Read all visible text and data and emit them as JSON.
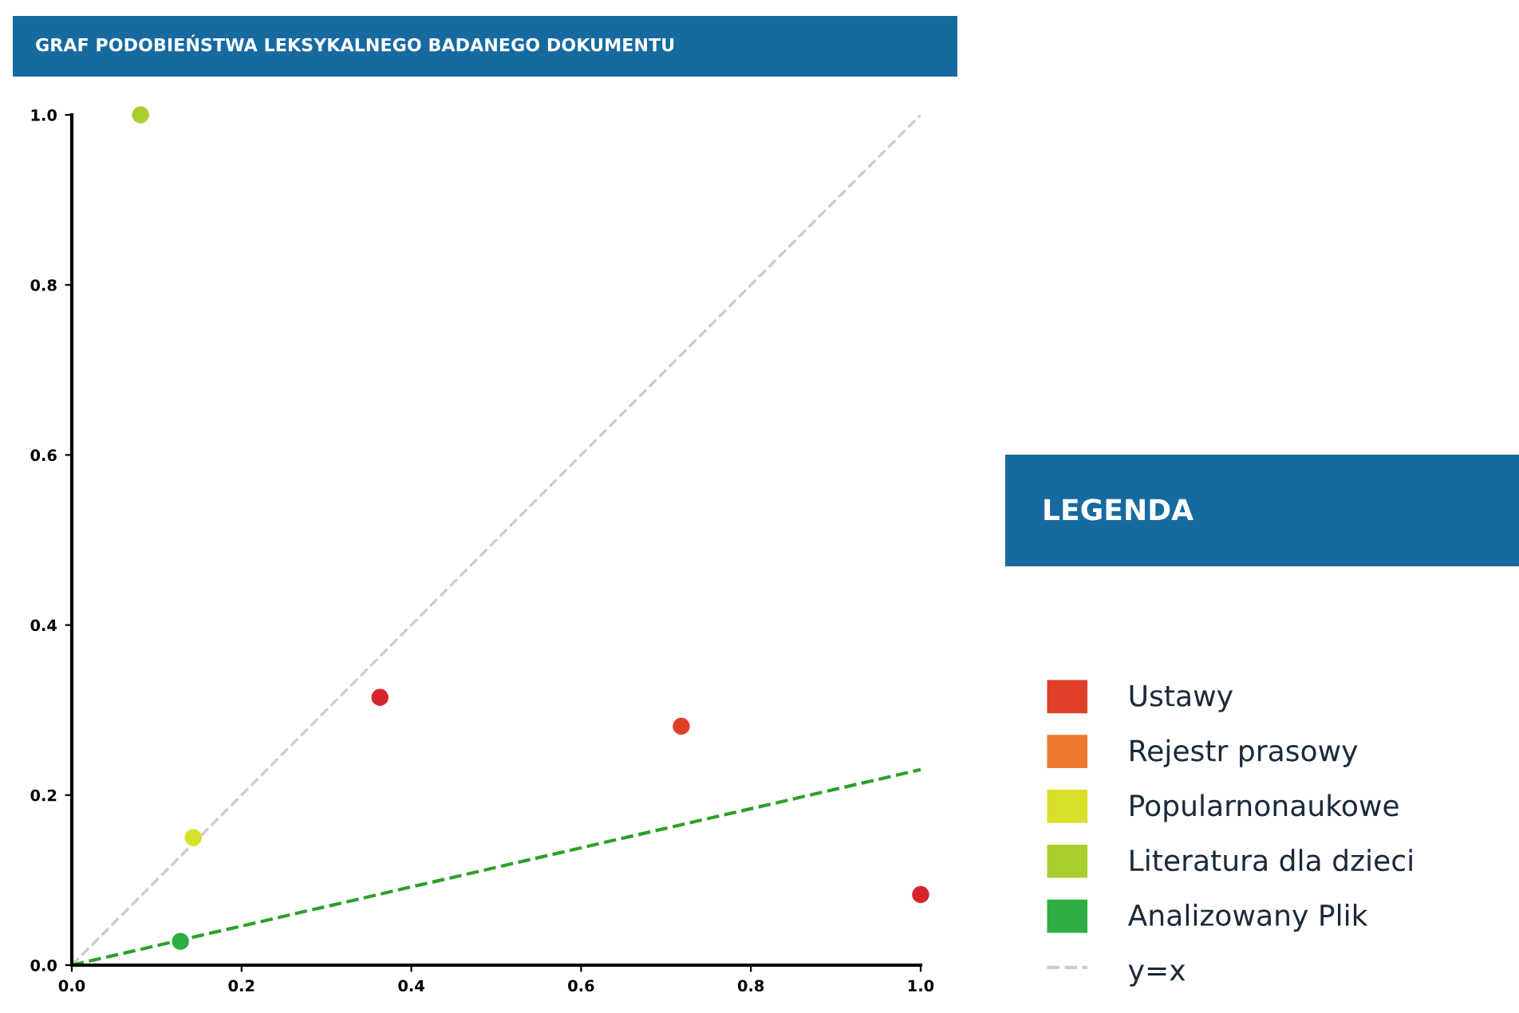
{
  "chart_data": {
    "type": "scatter",
    "title": "GRAF PODOBIEŃSTWA LEKSYKALNEGO BADANEGO DOKUMENTU",
    "legend_title": "LEGENDA",
    "legend": "right",
    "grid": false,
    "marker": "circle",
    "xlim": [
      0,
      1
    ],
    "ylim": [
      0,
      1
    ],
    "xticks": [
      {
        "value": 0,
        "label": "0.0"
      },
      0.2,
      0.4,
      0.6,
      0.8,
      {
        "value": 1,
        "label": "1.0"
      }
    ],
    "yticks": [
      {
        "value": 0,
        "label": "0.0"
      },
      0.2,
      0.4,
      0.6,
      0.8,
      {
        "value": 1,
        "label": "1.0"
      }
    ],
    "series": [
      {
        "color": "#d7262b",
        "x": [
          0.363,
          1.0
        ],
        "values": [
          0.315,
          0.083
        ]
      },
      {
        "name": "Ustawy",
        "color": "#e0402a",
        "x": [
          0.718
        ],
        "values": [
          0.281
        ]
      },
      {
        "name": "Rejestr prasowy",
        "color": "#ec7a2c"
      },
      {
        "name": "Popularnonaukowe",
        "color": "#d9e02a",
        "x": [
          0.143
        ],
        "values": [
          0.15
        ]
      },
      {
        "name": "Literatura dla dzieci",
        "color": "#a8cf2e",
        "x": [
          0.081
        ],
        "values": [
          1.0
        ]
      },
      {
        "name": "Analizowany Plik",
        "color": "#2eae45",
        "x": [
          0.128
        ],
        "values": [
          0.028
        ]
      },
      {
        "name": "y=x",
        "type": "line",
        "line_style": "dashed",
        "marker": "none",
        "color": "#cccccc",
        "x": [
          0,
          1
        ],
        "values": [
          0,
          1
        ]
      },
      {
        "type": "line",
        "line_style": "dashed",
        "marker": "none",
        "color": "#2ea02a",
        "x": [
          0,
          1
        ],
        "values": [
          0,
          0.23
        ]
      }
    ]
  }
}
